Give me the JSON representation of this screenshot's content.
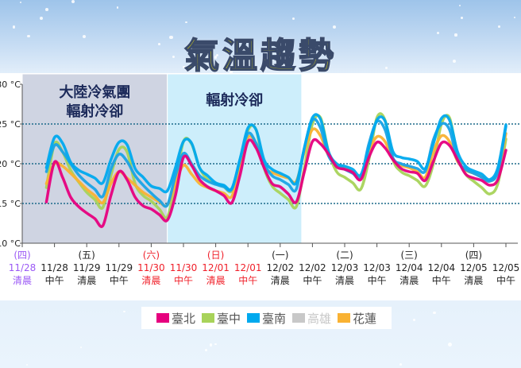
{
  "title": "氣溫趨勢",
  "legend": [
    {
      "label": "臺北",
      "color": "#e6007e",
      "active": true
    },
    {
      "label": "臺中",
      "color": "#a8d35a",
      "active": true
    },
    {
      "label": "臺南",
      "color": "#00a9ee",
      "active": true
    },
    {
      "label": "高雄",
      "color": "#c8c8c8",
      "active": false
    },
    {
      "label": "花蓮",
      "color": "#f9b233",
      "active": true
    }
  ],
  "chart_data": {
    "type": "line",
    "ylim": [
      10,
      30
    ],
    "y_ticks": [
      "10 °C",
      "15 °C",
      "20 °C",
      "25 °C",
      "30 °C"
    ],
    "y_tick_values": [
      10,
      15,
      20,
      25,
      30
    ],
    "gridlines": [
      15,
      20,
      25
    ],
    "grid": "dotted horizontal",
    "legend_position": "bottom",
    "x_ticks": [
      {
        "weekday": "(四)",
        "date": "11/28",
        "period": "清晨",
        "color": "#9b59f5"
      },
      {
        "weekday": "",
        "date": "11/28",
        "period": "中午",
        "color": "#222222"
      },
      {
        "weekday": "(五)",
        "date": "11/29",
        "period": "清晨",
        "color": "#222222"
      },
      {
        "weekday": "",
        "date": "11/29",
        "period": "中午",
        "color": "#222222"
      },
      {
        "weekday": "(六)",
        "date": "11/30",
        "period": "清晨",
        "color": "#f0202a"
      },
      {
        "weekday": "",
        "date": "11/30",
        "period": "中午",
        "color": "#f0202a"
      },
      {
        "weekday": "(日)",
        "date": "12/01",
        "period": "清晨",
        "color": "#f0202a"
      },
      {
        "weekday": "",
        "date": "12/01",
        "period": "中午",
        "color": "#f0202a"
      },
      {
        "weekday": "(一)",
        "date": "12/02",
        "period": "清晨",
        "color": "#222222"
      },
      {
        "weekday": "",
        "date": "12/02",
        "period": "中午",
        "color": "#222222"
      },
      {
        "weekday": "(二)",
        "date": "12/03",
        "period": "清晨",
        "color": "#222222"
      },
      {
        "weekday": "",
        "date": "12/03",
        "period": "中午",
        "color": "#222222"
      },
      {
        "weekday": "(三)",
        "date": "12/04",
        "period": "清晨",
        "color": "#222222"
      },
      {
        "weekday": "",
        "date": "12/04",
        "period": "中午",
        "color": "#222222"
      },
      {
        "weekday": "(四)",
        "date": "12/05",
        "period": "清晨",
        "color": "#222222"
      },
      {
        "weekday": "",
        "date": "12/05",
        "period": "中午",
        "color": "#222222"
      }
    ],
    "annotations": [
      {
        "lines": [
          "大陸冷氣團",
          "輻射冷卻"
        ],
        "from": "11/28 00:00",
        "to": "11/30 06:00",
        "color": "#cfd4e2"
      },
      {
        "lines": [
          "輻射冷卻"
        ],
        "from": "11/30 06:00",
        "to": "12/02 08:00",
        "color": "#cdeefb"
      }
    ],
    "x": [
      "11/28 09:00",
      "11/28 12:00",
      "11/28 15:00",
      "11/28 18:00",
      "11/28 21:00",
      "11/29 00:00",
      "11/29 03:00",
      "11/29 06:00",
      "11/29 09:00",
      "11/29 12:00",
      "11/29 15:00",
      "11/29 18:00",
      "11/29 21:00",
      "11/30 00:00",
      "11/30 03:00",
      "11/30 06:00",
      "11/30 09:00",
      "11/30 12:00",
      "11/30 15:00",
      "11/30 18:00",
      "11/30 21:00",
      "12/01 00:00",
      "12/01 03:00",
      "12/01 06:00",
      "12/01 09:00",
      "12/01 12:00",
      "12/01 15:00",
      "12/01 18:00",
      "12/01 21:00",
      "12/02 00:00",
      "12/02 03:00",
      "12/02 06:00",
      "12/02 09:00",
      "12/02 12:00",
      "12/02 15:00",
      "12/02 18:00",
      "12/02 21:00",
      "12/03 00:00",
      "12/03 03:00",
      "12/03 06:00",
      "12/03 09:00",
      "12/03 12:00",
      "12/03 15:00",
      "12/03 18:00",
      "12/03 21:00",
      "12/04 00:00",
      "12/04 03:00",
      "12/04 06:00",
      "12/04 09:00",
      "12/04 12:00",
      "12/04 15:00",
      "12/04 18:00",
      "12/04 21:00",
      "12/05 00:00",
      "12/05 03:00",
      "12/05 06:00",
      "12/05 09:00",
      "12/05 12:00"
    ],
    "series": [
      {
        "name": "臺中",
        "color": "#a8d35a",
        "values": [
          17.0,
          22.5,
          21.5,
          19.2,
          17.7,
          16.4,
          15.5,
          14.5,
          18.5,
          21.8,
          21.5,
          17.5,
          16.0,
          15.3,
          14.3,
          13.3,
          17.5,
          22.8,
          22.5,
          19.5,
          18.0,
          17.5,
          17.1,
          16.6,
          20.0,
          24.2,
          24.3,
          19.5,
          17.2,
          16.3,
          15.5,
          14.6,
          19.5,
          25.0,
          25.8,
          21.5,
          19.0,
          18.3,
          17.6,
          16.8,
          20.5,
          25.8,
          25.5,
          20.5,
          19.0,
          18.5,
          17.9,
          17.2,
          20.0,
          25.0,
          25.8,
          21.0,
          18.7,
          17.8,
          17.0,
          16.2,
          17.5,
          23.1
        ]
      },
      {
        "name": "花蓮",
        "color": "#f9b233",
        "values": [
          17.5,
          20.0,
          19.7,
          18.8,
          17.8,
          16.8,
          16.0,
          15.1,
          17.5,
          19.0,
          18.2,
          17.3,
          16.4,
          15.8,
          15.2,
          14.8,
          17.5,
          19.8,
          18.7,
          17.5,
          17.0,
          16.6,
          16.3,
          15.9,
          19.5,
          23.3,
          22.5,
          19.6,
          18.9,
          18.5,
          18.2,
          17.8,
          21.5,
          24.3,
          23.5,
          21.0,
          20.0,
          19.5,
          19.0,
          18.3,
          21.5,
          23.4,
          22.8,
          20.5,
          19.8,
          19.5,
          19.0,
          18.3,
          21.5,
          23.5,
          22.8,
          20.3,
          19.2,
          18.8,
          18.4,
          17.8,
          19.0,
          23.8
        ]
      },
      {
        "name": "",
        "color": "#1aa3e6",
        "values": [
          19.0,
          22.3,
          21.5,
          20.0,
          18.6,
          17.6,
          16.8,
          15.9,
          19.3,
          21.2,
          20.3,
          18.5,
          17.3,
          16.3,
          15.4,
          14.8,
          18.5,
          21.3,
          20.0,
          18.5,
          17.8,
          17.4,
          17.1,
          16.8,
          20.5,
          23.8,
          22.6,
          20.0,
          18.5,
          18.0,
          17.4,
          16.8,
          22.0,
          25.5,
          24.5,
          21.0,
          19.8,
          19.3,
          18.8,
          18.3,
          22.5,
          25.3,
          24.3,
          20.7,
          20.0,
          19.7,
          19.4,
          19.1,
          23.0,
          25.0,
          24.3,
          20.5,
          19.3,
          18.8,
          18.3,
          17.8,
          19.0,
          24.7
        ]
      },
      {
        "name": "臺南",
        "color": "#00a9ee",
        "values": [
          19.5,
          23.3,
          22.6,
          20.2,
          19.2,
          18.7,
          18.2,
          17.6,
          20.5,
          22.7,
          22.4,
          19.4,
          18.3,
          17.2,
          16.9,
          16.6,
          19.5,
          22.8,
          22.6,
          19.5,
          18.5,
          17.6,
          17.3,
          16.9,
          20.5,
          24.5,
          24.3,
          20.5,
          19.3,
          18.8,
          18.3,
          17.6,
          22.0,
          25.8,
          25.6,
          21.5,
          20.0,
          19.7,
          19.3,
          18.6,
          22.0,
          25.5,
          25.4,
          21.5,
          20.8,
          20.6,
          20.3,
          19.4,
          22.5,
          25.7,
          25.5,
          21.5,
          19.7,
          19.1,
          18.7,
          18.0,
          19.5,
          24.9
        ]
      },
      {
        "name": "臺北",
        "color": "#e6007e",
        "values": [
          15.2,
          20.2,
          18.3,
          15.8,
          14.6,
          13.8,
          13.1,
          12.2,
          16.0,
          19.0,
          18.0,
          15.8,
          14.7,
          14.3,
          13.6,
          12.9,
          16.0,
          20.8,
          19.8,
          18.0,
          17.1,
          16.6,
          16.0,
          15.1,
          18.5,
          22.8,
          22.0,
          19.5,
          17.5,
          17.1,
          16.2,
          15.2,
          19.0,
          22.8,
          22.5,
          21.2,
          19.6,
          19.3,
          18.9,
          18.0,
          20.8,
          22.7,
          22.0,
          20.5,
          19.4,
          19.0,
          18.8,
          17.9,
          20.3,
          22.6,
          22.3,
          20.5,
          18.7,
          18.2,
          17.9,
          17.3,
          18.0,
          21.7
        ]
      }
    ]
  }
}
